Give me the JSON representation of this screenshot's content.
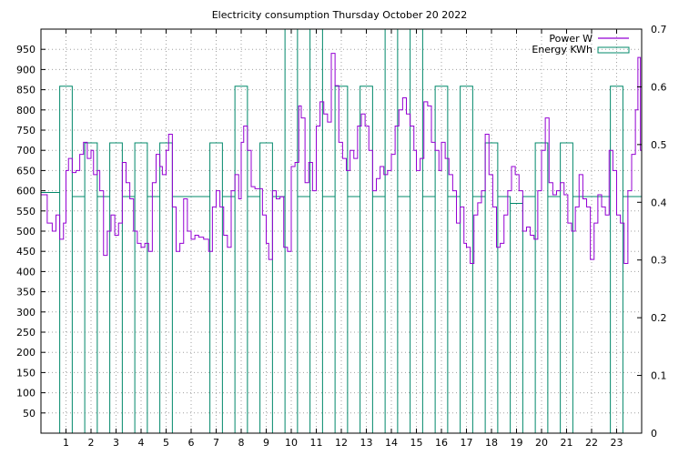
{
  "chart_data": {
    "type": "line",
    "title": "Electricity consumption Thursday October 20 2022",
    "xlim": [
      0,
      24
    ],
    "x_ticks": [
      "1",
      "2",
      "3",
      "4",
      "5",
      "6",
      "7",
      "8",
      "9",
      "10",
      "11",
      "12",
      "13",
      "14",
      "15",
      "16",
      "17",
      "18",
      "19",
      "20",
      "21",
      "22",
      "23"
    ],
    "y_left": {
      "ylim": [
        0,
        1000
      ],
      "ticks": [
        "50",
        "100",
        "150",
        "200",
        "250",
        "300",
        "350",
        "400",
        "450",
        "500",
        "550",
        "600",
        "650",
        "700",
        "750",
        "800",
        "850",
        "900",
        "950"
      ]
    },
    "y_right": {
      "ylim": [
        0,
        0.7
      ],
      "ticks": [
        "0",
        "0.1",
        "0.2",
        "0.3",
        "0.4",
        "0.5",
        "0.6",
        "0.7"
      ]
    },
    "grid": true,
    "legend_position": "top-right",
    "series": [
      {
        "name": "Power W",
        "axis": "left",
        "color": "#9400d3",
        "style": "step",
        "points": [
          [
            0.0,
            590
          ],
          [
            0.25,
            520
          ],
          [
            0.45,
            500
          ],
          [
            0.6,
            540
          ],
          [
            0.75,
            480
          ],
          [
            0.9,
            520
          ],
          [
            1.0,
            650
          ],
          [
            1.1,
            680
          ],
          [
            1.25,
            645
          ],
          [
            1.4,
            650
          ],
          [
            1.55,
            690
          ],
          [
            1.7,
            720
          ],
          [
            1.85,
            680
          ],
          [
            2.0,
            700
          ],
          [
            2.1,
            640
          ],
          [
            2.25,
            650
          ],
          [
            2.35,
            600
          ],
          [
            2.5,
            440
          ],
          [
            2.65,
            500
          ],
          [
            2.8,
            540
          ],
          [
            2.95,
            490
          ],
          [
            3.1,
            520
          ],
          [
            3.25,
            670
          ],
          [
            3.4,
            620
          ],
          [
            3.55,
            580
          ],
          [
            3.7,
            500
          ],
          [
            3.85,
            470
          ],
          [
            4.0,
            460
          ],
          [
            4.15,
            470
          ],
          [
            4.3,
            450
          ],
          [
            4.45,
            620
          ],
          [
            4.6,
            690
          ],
          [
            4.75,
            660
          ],
          [
            4.85,
            640
          ],
          [
            5.0,
            700
          ],
          [
            5.1,
            740
          ],
          [
            5.25,
            560
          ],
          [
            5.4,
            450
          ],
          [
            5.55,
            470
          ],
          [
            5.7,
            580
          ],
          [
            5.85,
            500
          ],
          [
            6.0,
            480
          ],
          [
            6.15,
            490
          ],
          [
            6.3,
            485
          ],
          [
            6.5,
            480
          ],
          [
            6.7,
            450
          ],
          [
            6.85,
            560
          ],
          [
            7.0,
            600
          ],
          [
            7.15,
            560
          ],
          [
            7.3,
            490
          ],
          [
            7.45,
            460
          ],
          [
            7.6,
            600
          ],
          [
            7.75,
            640
          ],
          [
            7.9,
            580
          ],
          [
            8.0,
            720
          ],
          [
            8.1,
            760
          ],
          [
            8.25,
            700
          ],
          [
            8.4,
            610
          ],
          [
            8.55,
            605
          ],
          [
            8.7,
            605
          ],
          [
            8.85,
            540
          ],
          [
            9.0,
            470
          ],
          [
            9.1,
            430
          ],
          [
            9.25,
            600
          ],
          [
            9.4,
            580
          ],
          [
            9.55,
            585
          ],
          [
            9.7,
            460
          ],
          [
            9.85,
            450
          ],
          [
            10.0,
            660
          ],
          [
            10.15,
            670
          ],
          [
            10.3,
            810
          ],
          [
            10.4,
            780
          ],
          [
            10.55,
            620
          ],
          [
            10.7,
            670
          ],
          [
            10.85,
            600
          ],
          [
            11.0,
            760
          ],
          [
            11.15,
            820
          ],
          [
            11.3,
            790
          ],
          [
            11.45,
            770
          ],
          [
            11.6,
            940
          ],
          [
            11.75,
            860
          ],
          [
            11.9,
            720
          ],
          [
            12.05,
            680
          ],
          [
            12.2,
            650
          ],
          [
            12.35,
            700
          ],
          [
            12.5,
            680
          ],
          [
            12.65,
            760
          ],
          [
            12.8,
            790
          ],
          [
            12.95,
            760
          ],
          [
            13.1,
            700
          ],
          [
            13.25,
            600
          ],
          [
            13.4,
            630
          ],
          [
            13.55,
            660
          ],
          [
            13.7,
            640
          ],
          [
            13.85,
            650
          ],
          [
            14.0,
            690
          ],
          [
            14.15,
            760
          ],
          [
            14.3,
            800
          ],
          [
            14.45,
            830
          ],
          [
            14.6,
            790
          ],
          [
            14.75,
            760
          ],
          [
            14.9,
            700
          ],
          [
            15.0,
            650
          ],
          [
            15.15,
            680
          ],
          [
            15.3,
            820
          ],
          [
            15.45,
            810
          ],
          [
            15.6,
            720
          ],
          [
            15.75,
            700
          ],
          [
            15.9,
            650
          ],
          [
            16.0,
            720
          ],
          [
            16.15,
            680
          ],
          [
            16.3,
            640
          ],
          [
            16.45,
            600
          ],
          [
            16.6,
            520
          ],
          [
            16.75,
            560
          ],
          [
            16.9,
            470
          ],
          [
            17.0,
            460
          ],
          [
            17.15,
            420
          ],
          [
            17.3,
            540
          ],
          [
            17.45,
            570
          ],
          [
            17.6,
            600
          ],
          [
            17.75,
            740
          ],
          [
            17.9,
            640
          ],
          [
            18.05,
            560
          ],
          [
            18.2,
            460
          ],
          [
            18.35,
            470
          ],
          [
            18.5,
            540
          ],
          [
            18.65,
            600
          ],
          [
            18.8,
            660
          ],
          [
            18.95,
            640
          ],
          [
            19.1,
            600
          ],
          [
            19.25,
            500
          ],
          [
            19.4,
            510
          ],
          [
            19.55,
            490
          ],
          [
            19.7,
            480
          ],
          [
            19.85,
            600
          ],
          [
            20.0,
            700
          ],
          [
            20.15,
            780
          ],
          [
            20.3,
            620
          ],
          [
            20.45,
            590
          ],
          [
            20.6,
            600
          ],
          [
            20.75,
            620
          ],
          [
            20.9,
            590
          ],
          [
            21.05,
            520
          ],
          [
            21.2,
            500
          ],
          [
            21.35,
            560
          ],
          [
            21.5,
            640
          ],
          [
            21.65,
            580
          ],
          [
            21.8,
            560
          ],
          [
            21.95,
            430
          ],
          [
            22.1,
            520
          ],
          [
            22.25,
            590
          ],
          [
            22.4,
            560
          ],
          [
            22.55,
            540
          ],
          [
            22.7,
            700
          ],
          [
            22.85,
            650
          ],
          [
            23.0,
            540
          ],
          [
            23.15,
            520
          ],
          [
            23.3,
            420
          ],
          [
            23.45,
            600
          ],
          [
            23.6,
            690
          ],
          [
            23.75,
            800
          ],
          [
            23.85,
            930
          ],
          [
            23.95,
            700
          ]
        ]
      },
      {
        "name": "Energy KWh",
        "axis": "right",
        "color": "#00886a",
        "style": "bars",
        "segments": [
          [
            0.0,
            0.417
          ],
          [
            0.75,
            0.601
          ],
          [
            1.25,
            0.41
          ],
          [
            1.75,
            0.503
          ],
          [
            2.25,
            0.41
          ],
          [
            2.75,
            0.503
          ],
          [
            3.25,
            0.41
          ],
          [
            3.75,
            0.503
          ],
          [
            4.25,
            0.41
          ],
          [
            4.75,
            0.503
          ],
          [
            5.25,
            0.41
          ],
          [
            6.75,
            0.503
          ],
          [
            7.25,
            0.41
          ],
          [
            7.75,
            0.601
          ],
          [
            8.25,
            0.41
          ],
          [
            8.75,
            0.503
          ],
          [
            9.25,
            0.41
          ],
          [
            9.75,
            0.7
          ],
          [
            10.25,
            0.41
          ],
          [
            10.75,
            0.7
          ],
          [
            11.25,
            0.41
          ],
          [
            11.75,
            0.601
          ],
          [
            12.25,
            0.41
          ],
          [
            12.75,
            0.601
          ],
          [
            13.25,
            0.41
          ],
          [
            13.75,
            0.7
          ],
          [
            14.25,
            0.41
          ],
          [
            14.75,
            0.7
          ],
          [
            15.25,
            0.41
          ],
          [
            15.75,
            0.601
          ],
          [
            16.25,
            0.41
          ],
          [
            16.75,
            0.601
          ],
          [
            17.25,
            0.41
          ],
          [
            17.75,
            0.503
          ],
          [
            18.25,
            0.41
          ],
          [
            18.75,
            0.398
          ],
          [
            19.25,
            0.41
          ],
          [
            19.75,
            0.503
          ],
          [
            20.25,
            0.41
          ],
          [
            20.75,
            0.503
          ],
          [
            21.25,
            0.41
          ],
          [
            22.75,
            0.601
          ],
          [
            23.25,
            0.41
          ],
          [
            24.0,
            0.41
          ]
        ]
      }
    ]
  }
}
